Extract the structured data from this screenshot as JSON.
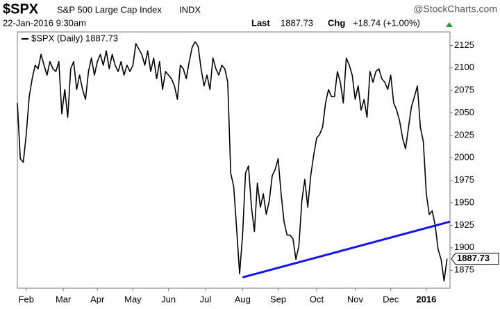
{
  "header": {
    "symbol": "$SPX",
    "name": "S&P 500 Large Cap Index",
    "exchange": "INDX",
    "source": "@StockCharts.com",
    "date": "22-Jan-2016 9:30am",
    "last_label": "Last",
    "chg_label": "Chg",
    "chg": "+18.74 (+1.00%)"
  },
  "chart_data": {
    "type": "line",
    "series": [
      {
        "name": "$SPX (Daily) 1887.73",
        "color": "#000000",
        "values": [
          2061,
          1999,
          1995,
          2026,
          2068,
          2088,
          2103,
          2099,
          2115,
          2103,
          2092,
          2107,
          2099,
          2096,
          2107,
          2049,
          2076,
          2045,
          2099,
          2107,
          2076,
          2092,
          2076,
          2065,
          2096,
          2111,
          2092,
          2107,
          2115,
          2103,
          2119,
          2099,
          2115,
          2103,
          2096,
          2107,
          2092,
          2103,
          2096,
          2103,
          2127,
          2121,
          2115,
          2103,
          2119,
          2096,
          2111,
          2088,
          2107,
          2076,
          2096,
          2092,
          2088,
          2080,
          2065,
          2103,
          2099,
          2088,
          2107,
          2123,
          2129,
          2124,
          2099,
          2080,
          2092,
          2076,
          2111,
          2099,
          2092,
          2103,
          2099,
          2084,
          1983,
          1968,
          1921,
          1871,
          1914,
          1983,
          1991,
          1945,
          1918,
          1972,
          1945,
          1960,
          1937,
          1952,
          1980,
          1987,
          1999,
          1960,
          1929,
          1914,
          1914,
          1910,
          1887,
          1902,
          1952,
          1976,
          1945,
          1980,
          2003,
          2022,
          2026,
          2034,
          2061,
          2076,
          2068,
          2068,
          2096,
          2084,
          2061,
          2111,
          2103,
          2092,
          2065,
          2080,
          2053,
          2065,
          2045,
          2096,
          2084,
          2096,
          2099,
          2088,
          2084,
          2076,
          2092,
          2061,
          2053,
          2041,
          2022,
          2010,
          2034,
          2057,
          2068,
          2080,
          2034,
          2018,
          1960,
          1937,
          1941,
          1925,
          1898,
          1887,
          1863,
          1887.73
        ]
      }
    ],
    "trendline": {
      "x": [
        76,
        146
      ],
      "values": [
        1867,
        1929
      ],
      "color": "#1414e6"
    },
    "xlim": [
      0,
      146
    ],
    "ylim": [
      1855,
      2140
    ],
    "xticks": [
      {
        "value": 3,
        "label": "Feb"
      },
      {
        "value": 15.5,
        "label": "Mar"
      },
      {
        "value": 27,
        "label": "Apr"
      },
      {
        "value": 39,
        "label": "May"
      },
      {
        "value": 51,
        "label": "Jun"
      },
      {
        "value": 63.5,
        "label": "Jul"
      },
      {
        "value": 76,
        "label": "Aug"
      },
      {
        "value": 88,
        "label": "Sep"
      },
      {
        "value": 101,
        "label": "Oct"
      },
      {
        "value": 114,
        "label": "Nov"
      },
      {
        "value": 126,
        "label": "Dec"
      },
      {
        "value": 138,
        "label": "2016"
      }
    ],
    "yticks": [
      1875,
      1900,
      1925,
      1950,
      1975,
      2000,
      2025,
      2050,
      2075,
      2100,
      2125
    ],
    "legend": "top-left"
  }
}
